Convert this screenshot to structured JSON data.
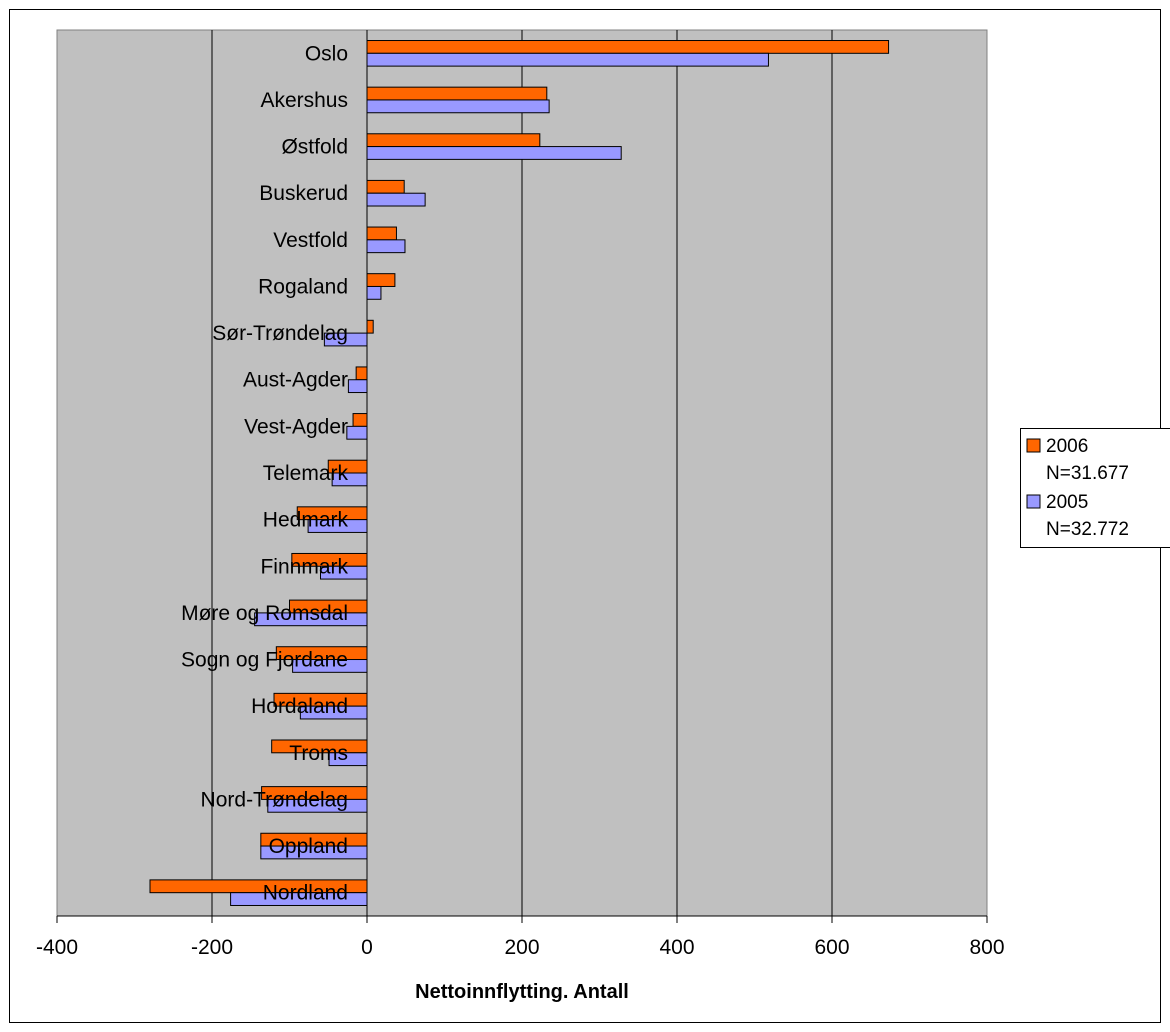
{
  "chart_data": {
    "type": "bar",
    "orientation": "horizontal",
    "title": "",
    "xlabel": "Nettoinnflytting. Antall",
    "ylabel": "",
    "xlim": [
      -400,
      800
    ],
    "xticks": [
      -400,
      -200,
      0,
      200,
      400,
      600,
      800
    ],
    "grid": true,
    "legend_position": "right",
    "categories": [
      "Oslo",
      "Akershus",
      "Østfold",
      "Buskerud",
      "Vestfold",
      "Rogaland",
      "Sør-Trøndelag",
      "Aust-Agder",
      "Vest-Agder",
      "Telemark",
      "Hedmark",
      "Finnmark",
      "Møre og Romsdal",
      "Sogn og Fjordane",
      "Hordaland",
      "Troms",
      "Nord-Trøndelag",
      "Oppland",
      "Nordland"
    ],
    "series": [
      {
        "name": "2006",
        "sublabel": "N=31.677",
        "color": "#FF6600",
        "values": [
          673,
          232,
          223,
          48,
          38,
          36,
          8,
          -14,
          -18,
          -50,
          -90,
          -97,
          -100,
          -117,
          -120,
          -123,
          -136,
          -137,
          -280
        ]
      },
      {
        "name": "2005",
        "sublabel": "N=32.772",
        "color": "#9999FF",
        "values": [
          518,
          235,
          328,
          75,
          49,
          18,
          -55,
          -24,
          -26,
          -45,
          -76,
          -60,
          -145,
          -96,
          -86,
          -49,
          -128,
          -137,
          -176
        ]
      }
    ],
    "plot_background": "#C0C0C0"
  }
}
